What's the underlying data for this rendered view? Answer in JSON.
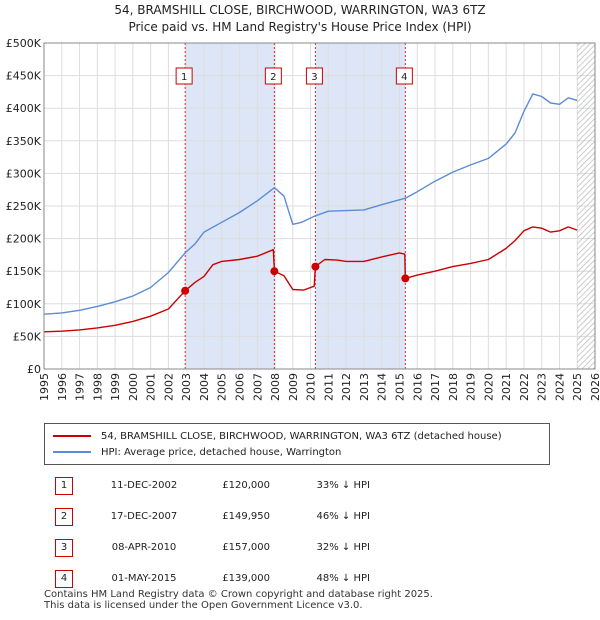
{
  "title_line1": "54, BRAMSHILL CLOSE, BIRCHWOOD, WARRINGTON, WA3 6TZ",
  "title_line2": "Price paid vs. HM Land Registry's House Price Index (HPI)",
  "colors": {
    "price_paid": "#cc0000",
    "hpi": "#5b8dd6",
    "shade": "#dde6f7",
    "grid": "#dddddd",
    "marker_line": "#cc0000"
  },
  "chart_data": {
    "type": "line",
    "title": "54, BRAMSHILL CLOSE, BIRCHWOOD, WARRINGTON, WA3 6TZ",
    "xlabel": "",
    "ylabel": "",
    "xlim": [
      1995,
      2026
    ],
    "ylim": [
      0,
      500000
    ],
    "x_ticks": [
      "1995",
      "1996",
      "1997",
      "1998",
      "1999",
      "2000",
      "2001",
      "2002",
      "2003",
      "2004",
      "2005",
      "2006",
      "2007",
      "2008",
      "2009",
      "2010",
      "2011",
      "2012",
      "2013",
      "2014",
      "2015",
      "2016",
      "2017",
      "2018",
      "2019",
      "2020",
      "2021",
      "2022",
      "2023",
      "2024",
      "2025",
      "2026"
    ],
    "y_ticks": [
      {
        "value": 0,
        "label": "£0"
      },
      {
        "value": 50000,
        "label": "£50K"
      },
      {
        "value": 100000,
        "label": "£100K"
      },
      {
        "value": 150000,
        "label": "£150K"
      },
      {
        "value": 200000,
        "label": "£200K"
      },
      {
        "value": 250000,
        "label": "£250K"
      },
      {
        "value": 300000,
        "label": "£300K"
      },
      {
        "value": 350000,
        "label": "£350K"
      },
      {
        "value": 400000,
        "label": "£400K"
      },
      {
        "value": 450000,
        "label": "£450K"
      },
      {
        "value": 500000,
        "label": "£500K"
      }
    ],
    "shaded_ranges": [
      [
        2002.94,
        2007.96
      ],
      [
        2010.27,
        2015.33
      ]
    ],
    "forecast_from": 2025.0,
    "series": [
      {
        "name": "54, BRAMSHILL CLOSE, BIRCHWOOD, WARRINGTON, WA3 6TZ (detached house)",
        "color": "#cc0000",
        "points": [
          [
            1995.0,
            57000
          ],
          [
            1996.0,
            58000
          ],
          [
            1997.0,
            60000
          ],
          [
            1998.0,
            63000
          ],
          [
            1999.0,
            67000
          ],
          [
            2000.0,
            73000
          ],
          [
            2001.0,
            81000
          ],
          [
            2002.0,
            92000
          ],
          [
            2002.94,
            120000
          ],
          [
            2003.5,
            133000
          ],
          [
            2004.0,
            142000
          ],
          [
            2004.5,
            160000
          ],
          [
            2005.0,
            165000
          ],
          [
            2006.0,
            168000
          ],
          [
            2007.0,
            173000
          ],
          [
            2007.9,
            183000
          ],
          [
            2007.96,
            149950
          ],
          [
            2008.5,
            143000
          ],
          [
            2009.0,
            122000
          ],
          [
            2009.6,
            121000
          ],
          [
            2010.2,
            127000
          ],
          [
            2010.27,
            157000
          ],
          [
            2010.8,
            168000
          ],
          [
            2011.5,
            167000
          ],
          [
            2012.0,
            165000
          ],
          [
            2013.0,
            165000
          ],
          [
            2014.0,
            172000
          ],
          [
            2015.0,
            178000
          ],
          [
            2015.3,
            176000
          ],
          [
            2015.33,
            139000
          ],
          [
            2016.0,
            144000
          ],
          [
            2017.0,
            150000
          ],
          [
            2018.0,
            157000
          ],
          [
            2019.0,
            162000
          ],
          [
            2020.0,
            168000
          ],
          [
            2021.0,
            185000
          ],
          [
            2021.5,
            197000
          ],
          [
            2022.0,
            212000
          ],
          [
            2022.5,
            218000
          ],
          [
            2023.0,
            216000
          ],
          [
            2023.5,
            210000
          ],
          [
            2024.0,
            212000
          ],
          [
            2024.5,
            218000
          ],
          [
            2025.0,
            213000
          ]
        ]
      },
      {
        "name": "HPI: Average price, detached house, Warrington",
        "color": "#5b8dd6",
        "points": [
          [
            1995.0,
            84000
          ],
          [
            1996.0,
            86000
          ],
          [
            1997.0,
            90000
          ],
          [
            1998.0,
            96000
          ],
          [
            1999.0,
            103000
          ],
          [
            2000.0,
            112000
          ],
          [
            2001.0,
            125000
          ],
          [
            2002.0,
            148000
          ],
          [
            2002.94,
            178000
          ],
          [
            2003.5,
            192000
          ],
          [
            2004.0,
            210000
          ],
          [
            2005.0,
            225000
          ],
          [
            2006.0,
            240000
          ],
          [
            2007.0,
            258000
          ],
          [
            2007.96,
            278000
          ],
          [
            2008.5,
            265000
          ],
          [
            2009.0,
            222000
          ],
          [
            2009.5,
            225000
          ],
          [
            2010.27,
            235000
          ],
          [
            2011.0,
            242000
          ],
          [
            2012.0,
            243000
          ],
          [
            2013.0,
            244000
          ],
          [
            2014.0,
            252000
          ],
          [
            2015.33,
            262000
          ],
          [
            2016.0,
            272000
          ],
          [
            2017.0,
            288000
          ],
          [
            2018.0,
            302000
          ],
          [
            2019.0,
            313000
          ],
          [
            2020.0,
            323000
          ],
          [
            2021.0,
            345000
          ],
          [
            2021.5,
            362000
          ],
          [
            2022.0,
            395000
          ],
          [
            2022.5,
            422000
          ],
          [
            2023.0,
            418000
          ],
          [
            2023.5,
            408000
          ],
          [
            2024.0,
            406000
          ],
          [
            2024.5,
            416000
          ],
          [
            2025.0,
            412000
          ]
        ]
      }
    ],
    "sales": [
      {
        "num": "1",
        "year": 2002.94,
        "price": 120000
      },
      {
        "num": "2",
        "year": 2007.96,
        "price": 149950
      },
      {
        "num": "3",
        "year": 2010.27,
        "price": 157000
      },
      {
        "num": "4",
        "year": 2015.33,
        "price": 139000
      }
    ]
  },
  "legend": {
    "price_paid_label": "54, BRAMSHILL CLOSE, BIRCHWOOD, WARRINGTON, WA3 6TZ (detached house)",
    "hpi_label": "HPI: Average price, detached house, Warrington"
  },
  "sales_table": [
    {
      "num": "1",
      "date": "11-DEC-2002",
      "price": "£120,000",
      "hpi": "33% ↓ HPI"
    },
    {
      "num": "2",
      "date": "17-DEC-2007",
      "price": "£149,950",
      "hpi": "46% ↓ HPI"
    },
    {
      "num": "3",
      "date": "08-APR-2010",
      "price": "£157,000",
      "hpi": "32% ↓ HPI"
    },
    {
      "num": "4",
      "date": "01-MAY-2015",
      "price": "£139,000",
      "hpi": "48% ↓ HPI"
    }
  ],
  "footer": {
    "line1": "Contains HM Land Registry data © Crown copyright and database right 2025.",
    "line2": "This data is licensed under the Open Government Licence v3.0."
  }
}
